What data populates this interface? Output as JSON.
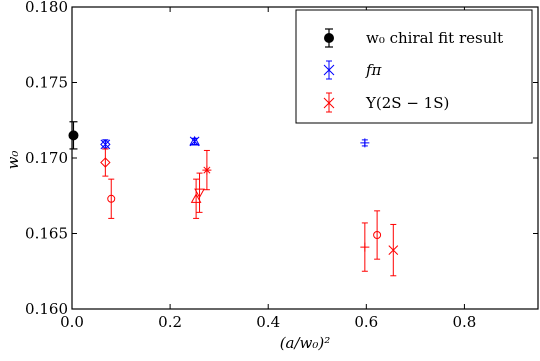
{
  "chart_data": {
    "type": "scatter",
    "xlabel": "(a/w₀)²",
    "ylabel": "w₀",
    "xlim": [
      0.0,
      0.95
    ],
    "ylim": [
      0.16,
      0.18
    ],
    "xticks": [
      0.0,
      0.2,
      0.4,
      0.6,
      0.8
    ],
    "xtick_labels": [
      "0.0",
      "0.2",
      "0.4",
      "0.6",
      "0.8"
    ],
    "yticks": [
      0.16,
      0.165,
      0.17,
      0.175,
      0.18
    ],
    "ytick_labels": [
      "0.160",
      "0.165",
      "0.170",
      "0.175",
      "0.180"
    ],
    "grid": false,
    "legend_position": "top-right",
    "series": [
      {
        "name": "w₀ chiral fit result",
        "color": "#000000",
        "marker": "circle-filled",
        "points": [
          {
            "x": 0.003,
            "y": 0.1715,
            "err": 0.0009
          }
        ]
      },
      {
        "name": "fπ",
        "color": "#0000ff",
        "points": [
          {
            "x": 0.068,
            "y": 0.1709,
            "err": 0.0003,
            "marker": "x"
          },
          {
            "x": 0.068,
            "y": 0.1709,
            "err": 0.0003,
            "marker": "diamond"
          },
          {
            "x": 0.25,
            "y": 0.1711,
            "err": 0.0002,
            "marker": "x"
          },
          {
            "x": 0.25,
            "y": 0.1711,
            "err": 0.0002,
            "marker": "triangle"
          },
          {
            "x": 0.597,
            "y": 0.171,
            "err": 0.0002,
            "marker": "plus"
          }
        ]
      },
      {
        "name": "Υ(2S − 1S)",
        "color": "#ff0000",
        "points": [
          {
            "x": 0.068,
            "y": 0.1697,
            "err": 0.0009,
            "marker": "diamond"
          },
          {
            "x": 0.08,
            "y": 0.1673,
            "err": 0.0013,
            "marker": "circle"
          },
          {
            "x": 0.253,
            "y": 0.1673,
            "err": 0.0013,
            "marker": "triangle"
          },
          {
            "x": 0.26,
            "y": 0.1677,
            "err": 0.0013,
            "marker": "triangle-down"
          },
          {
            "x": 0.275,
            "y": 0.1692,
            "err": 0.0013,
            "marker": "star"
          },
          {
            "x": 0.597,
            "y": 0.1641,
            "err": 0.0016,
            "marker": "plus"
          },
          {
            "x": 0.622,
            "y": 0.1649,
            "err": 0.0016,
            "marker": "circle"
          },
          {
            "x": 0.655,
            "y": 0.1639,
            "err": 0.0017,
            "marker": "x"
          }
        ]
      }
    ]
  }
}
